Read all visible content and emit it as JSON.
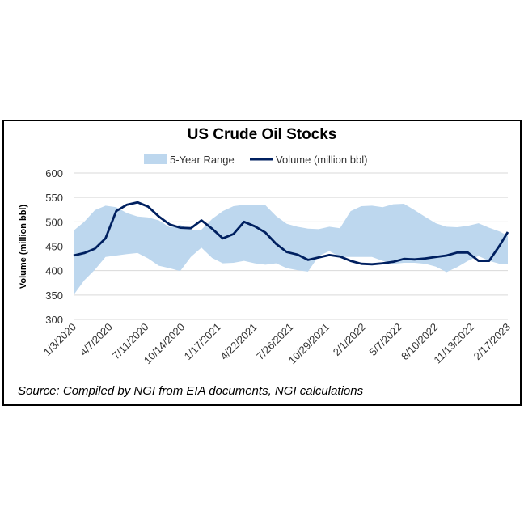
{
  "chart_data": {
    "type": "line",
    "title": "US Crude Oil Stocks",
    "ylabel": "Volume (million bbl)",
    "xlabel": "",
    "ylim": [
      300,
      600
    ],
    "yticks": [
      "600",
      "550",
      "500",
      "450",
      "400",
      "350",
      "300"
    ],
    "xticks": [
      "1/3/2020",
      "4/7/2020",
      "7/11/2020",
      "10/14/2020",
      "1/17/2021",
      "4/22/2021",
      "7/26/2021",
      "10/29/2021",
      "2/1/2022",
      "5/7/2022",
      "8/10/2022",
      "11/13/2022",
      "2/17/2023"
    ],
    "xlim": [
      "2020-01-03",
      "2023-02-17"
    ],
    "grid": "horizontal",
    "legend_position": "top",
    "source": "Source: Compiled by NGI from EIA documents, NGI calculations",
    "colors": {
      "range": "#bdd7ee",
      "volume": "#002060",
      "grid": "#d9d9d9"
    },
    "x": [
      "2020-01-03",
      "2020-01-31",
      "2020-02-28",
      "2020-03-27",
      "2020-04-24",
      "2020-05-22",
      "2020-06-19",
      "2020-07-17",
      "2020-08-14",
      "2020-09-11",
      "2020-10-09",
      "2020-11-06",
      "2020-12-04",
      "2021-01-01",
      "2021-01-29",
      "2021-02-26",
      "2021-03-26",
      "2021-04-23",
      "2021-05-21",
      "2021-06-18",
      "2021-07-16",
      "2021-08-13",
      "2021-09-10",
      "2021-10-08",
      "2021-11-05",
      "2021-12-03",
      "2021-12-31",
      "2022-01-28",
      "2022-02-25",
      "2022-03-25",
      "2022-04-22",
      "2022-05-20",
      "2022-06-17",
      "2022-07-15",
      "2022-08-12",
      "2022-09-09",
      "2022-10-07",
      "2022-11-04",
      "2022-12-02",
      "2022-12-30",
      "2023-01-27",
      "2023-02-17"
    ],
    "series": [
      {
        "name": "5-Year Range",
        "type": "band",
        "upper": [
          482,
          500,
          524,
          533,
          530,
          518,
          511,
          509,
          503,
          489,
          494,
          484,
          484,
          506,
          522,
          532,
          535,
          535,
          534,
          512,
          496,
          490,
          486,
          485,
          490,
          487,
          522,
          532,
          533,
          530,
          536,
          537,
          524,
          510,
          497,
          490,
          489,
          492,
          497,
          488,
          480,
          471
        ],
        "lower": [
          350,
          380,
          402,
          428,
          431,
          434,
          436,
          425,
          410,
          405,
          399,
          428,
          447,
          426,
          415,
          416,
          420,
          415,
          412,
          415,
          405,
          401,
          398,
          430,
          440,
          428,
          428,
          428,
          428,
          420,
          414,
          416,
          416,
          414,
          408,
          397,
          407,
          420,
          430,
          420,
          414,
          413
        ]
      },
      {
        "name": "Volume (million bbl)",
        "type": "line",
        "values": [
          431,
          436,
          445,
          466,
          522,
          535,
          540,
          531,
          511,
          495,
          488,
          487,
          503,
          486,
          466,
          475,
          500,
          491,
          478,
          455,
          438,
          433,
          422,
          427,
          432,
          429,
          420,
          414,
          413,
          415,
          418,
          424,
          423,
          425,
          428,
          431,
          437,
          437,
          420,
          420,
          452,
          479
        ]
      }
    ]
  }
}
